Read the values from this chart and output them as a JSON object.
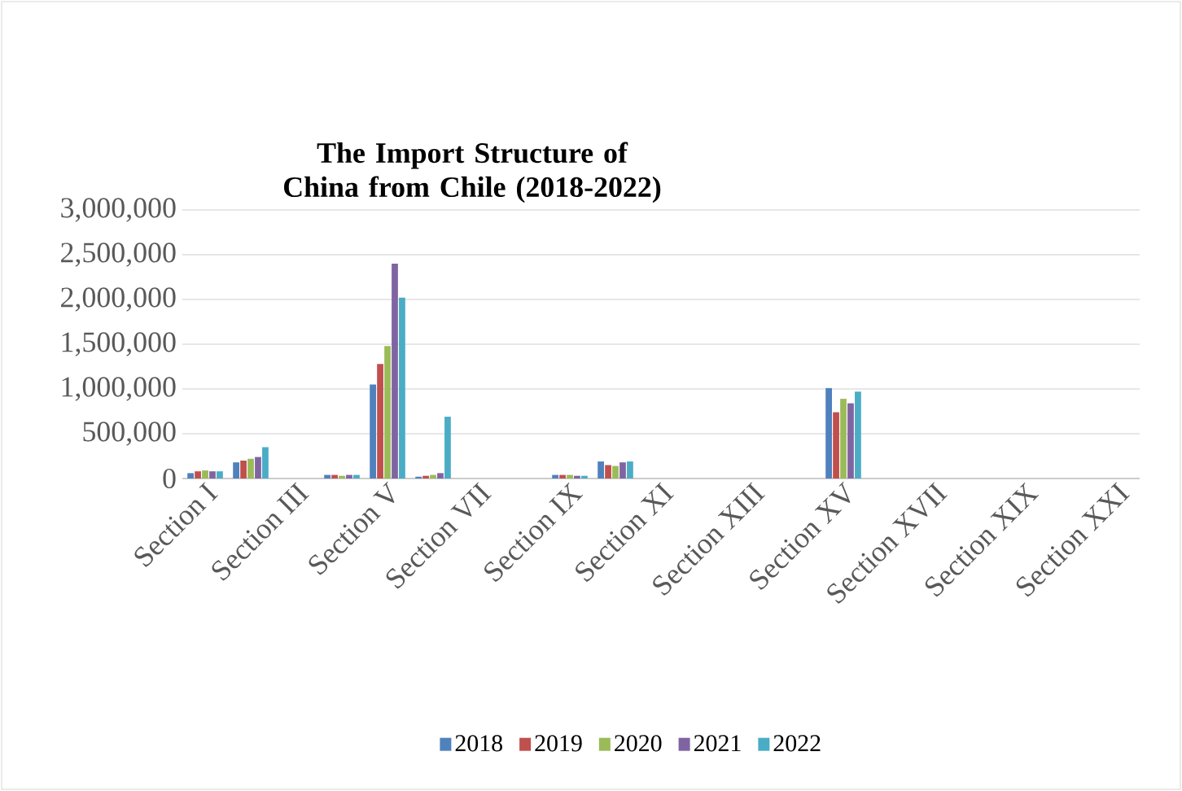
{
  "chart_data": {
    "type": "bar",
    "title": "The Import Structure of China from Chile (2018-2022)",
    "categories": [
      "Section I",
      null,
      "Section III",
      null,
      "Section V",
      null,
      "Section VII",
      null,
      "Section IX",
      null,
      "Section XI",
      null,
      "Section XIII",
      null,
      "Section XV",
      null,
      "Section XVII",
      null,
      "Section XIX",
      null,
      "Section XXI"
    ],
    "series": [
      {
        "name": "2018",
        "color": "#4f81bd",
        "values": [
          60000,
          180000,
          null,
          40000,
          1050000,
          20000,
          null,
          null,
          40000,
          190000,
          null,
          null,
          null,
          null,
          1010000,
          null,
          null,
          null,
          null,
          null,
          null
        ]
      },
      {
        "name": "2019",
        "color": "#c0504d",
        "values": [
          80000,
          200000,
          null,
          40000,
          1280000,
          30000,
          null,
          null,
          40000,
          150000,
          null,
          null,
          null,
          null,
          740000,
          null,
          null,
          null,
          null,
          null,
          null
        ]
      },
      {
        "name": "2020",
        "color": "#9bbb59",
        "values": [
          90000,
          220000,
          null,
          30000,
          1480000,
          40000,
          null,
          null,
          40000,
          140000,
          null,
          null,
          null,
          null,
          890000,
          null,
          null,
          null,
          null,
          null,
          null
        ]
      },
      {
        "name": "2021",
        "color": "#8064a2",
        "values": [
          80000,
          240000,
          null,
          40000,
          2400000,
          60000,
          null,
          null,
          30000,
          180000,
          null,
          null,
          null,
          null,
          840000,
          null,
          null,
          null,
          null,
          null,
          null
        ]
      },
      {
        "name": "2022",
        "color": "#4bacc6",
        "values": [
          80000,
          350000,
          null,
          40000,
          2020000,
          690000,
          null,
          null,
          30000,
          190000,
          null,
          null,
          null,
          null,
          970000,
          null,
          null,
          null,
          null,
          null,
          null
        ]
      }
    ],
    "ylim": [
      0,
      3000000
    ],
    "yticks": [
      0,
      {
        "value": 500000,
        "label": "500,000"
      },
      {
        "value": 1000000,
        "label": "1,000,000"
      },
      {
        "value": 1500000,
        "label": "1,500,000"
      },
      {
        "value": 2000000,
        "label": "2,000,000"
      },
      {
        "value": 2500000,
        "label": "2,500,000"
      },
      {
        "value": 3000000,
        "label": "3,000,000"
      }
    ],
    "grid": "y",
    "legend": "bottom"
  }
}
